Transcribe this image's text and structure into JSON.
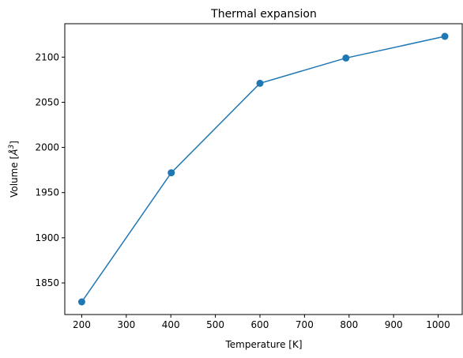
{
  "chart_data": {
    "type": "line",
    "title": "Thermal expansion",
    "xlabel": "Temperature [K]",
    "ylabel_main": "Volume [",
    "ylabel_unit": "Å",
    "ylabel_sup": "3",
    "ylabel_end": "]",
    "xlim": [
      162,
      1054
    ],
    "ylim": [
      1815,
      2137
    ],
    "xticks": [
      200,
      300,
      400,
      500,
      600,
      700,
      800,
      900,
      1000
    ],
    "xtick_labels": [
      "200",
      "300",
      "400",
      "500",
      "600",
      "700",
      "800",
      "900",
      "1000"
    ],
    "yticks": [
      1850,
      1900,
      1950,
      2000,
      2050,
      2100
    ],
    "ytick_labels": [
      "1850",
      "1900",
      "1950",
      "2000",
      "2050",
      "2100"
    ],
    "series": [
      {
        "x": [
          200,
          401,
          600,
          793,
          1015
        ],
        "y": [
          1829,
          1972,
          2071,
          2099,
          2123
        ],
        "color": "#1f77b4",
        "marker": "circle"
      }
    ],
    "grid": false
  }
}
